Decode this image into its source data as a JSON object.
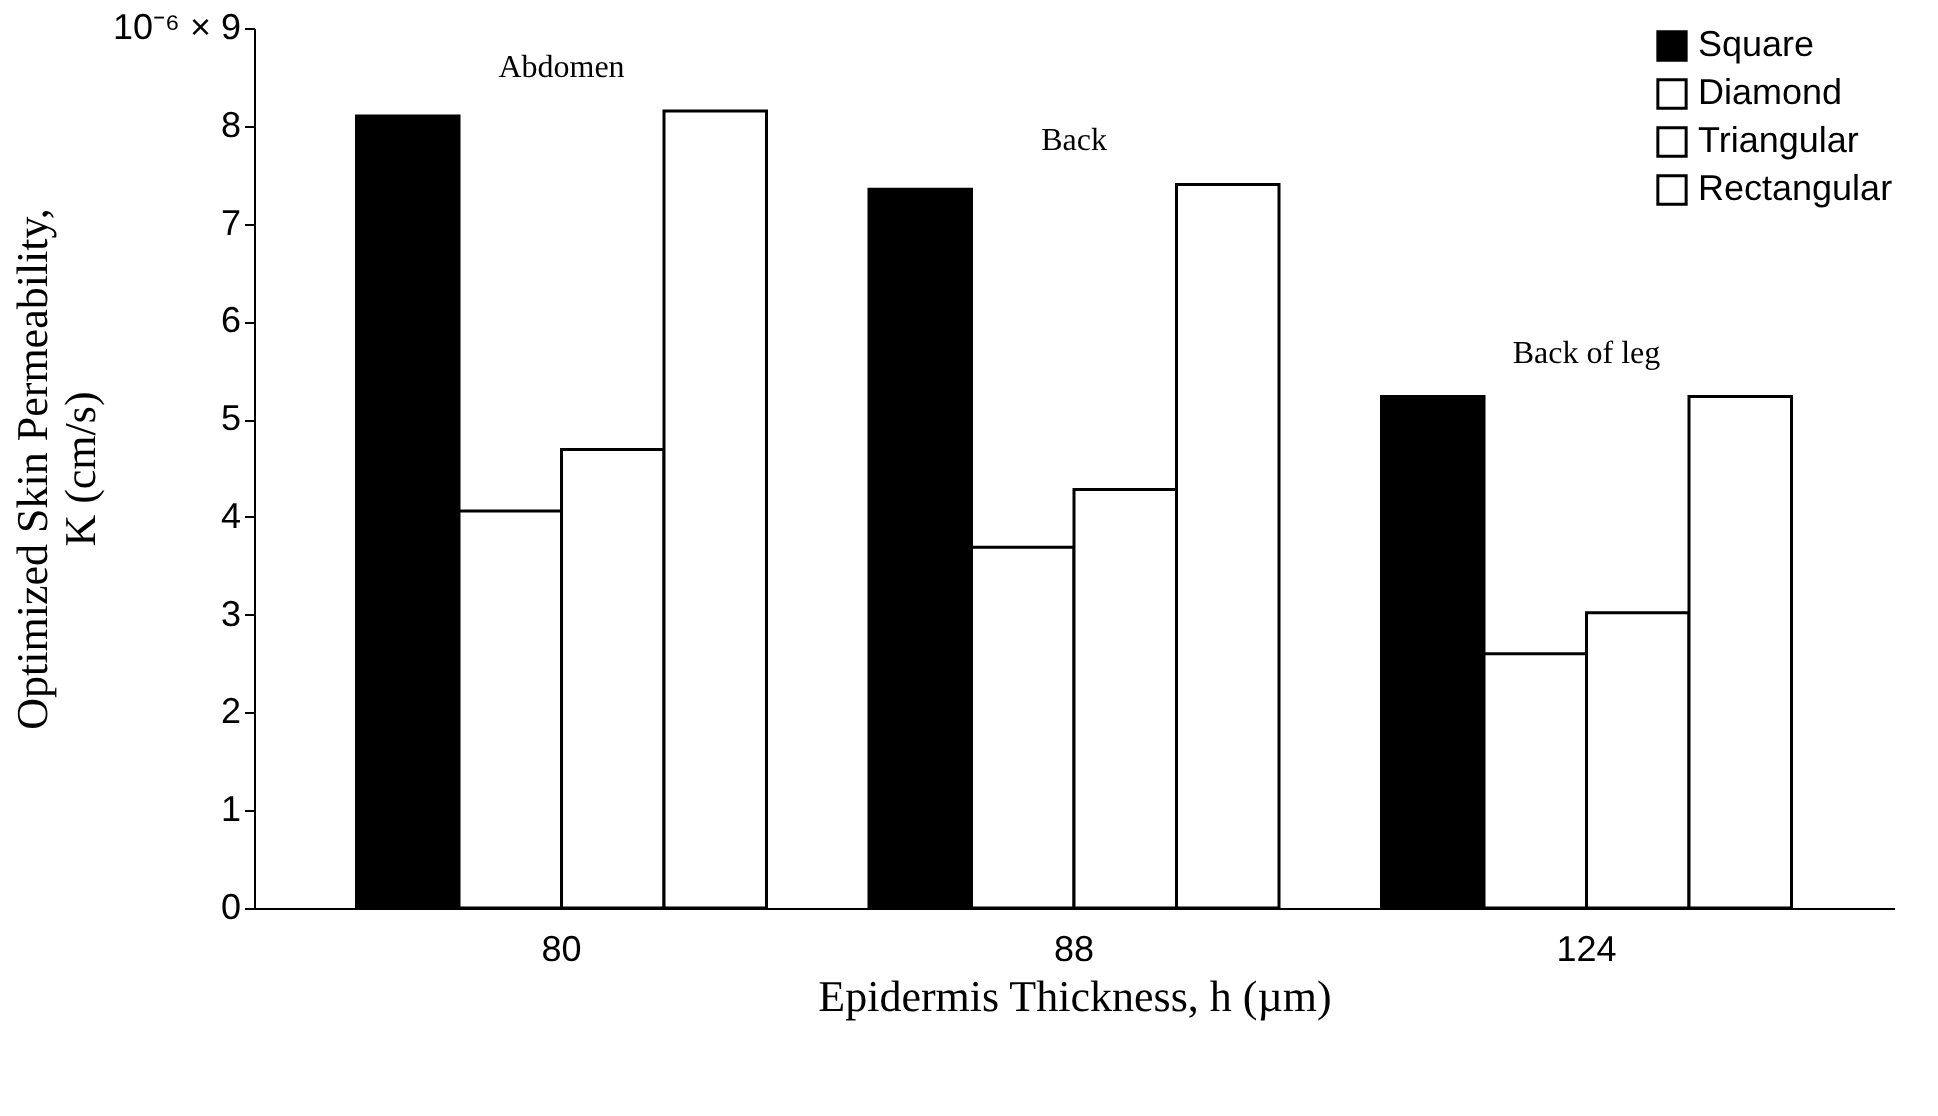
{
  "chart_data": {
    "type": "bar",
    "categories": [
      "80",
      "88",
      "124"
    ],
    "series": [
      {
        "name": "Square",
        "color": "#000000",
        "values": [
          8.1,
          7.35,
          5.23
        ]
      },
      {
        "name": "Diamond",
        "color": "#ffffff",
        "values": [
          4.06,
          3.69,
          2.6
        ]
      },
      {
        "name": "Triangular",
        "color": "#ffffff",
        "values": [
          4.69,
          4.28,
          3.02
        ]
      },
      {
        "name": "Rectangular",
        "color": "#ffffff",
        "values": [
          8.15,
          7.4,
          5.23
        ]
      }
    ],
    "xlabel": "Epidermis Thickness, h (µm)",
    "ylabel": "Optimized Skin Permeability,\nK (cm/s)",
    "ylim": [
      0,
      9
    ],
    "yticks": [
      0,
      1,
      2,
      3,
      4,
      5,
      6,
      7,
      8,
      {
        "value": 9,
        "label": "10⁻⁶ × 9"
      }
    ],
    "annotations": [
      "Abdomen",
      "Back",
      "Back of leg"
    ],
    "legend": "top right",
    "grid": false
  }
}
